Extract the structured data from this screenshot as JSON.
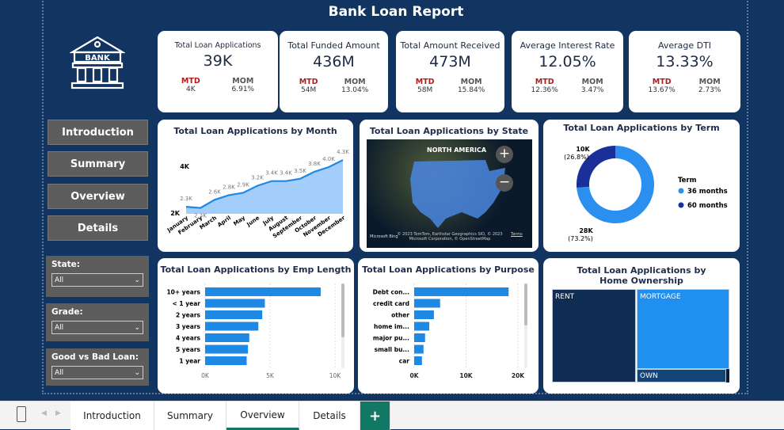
{
  "title": "Bank Loan Report",
  "logo": {
    "text": "BANK"
  },
  "kpis": [
    {
      "title": "Total Loan Applications",
      "value": "39K",
      "mtd_label": "MTD",
      "mtd": "4K",
      "mom_label": "MOM",
      "mom": "6.91%"
    },
    {
      "title": "Total Funded Amount",
      "value": "436M",
      "mtd_label": "MTD",
      "mtd": "54M",
      "mom_label": "MOM",
      "mom": "13.04%"
    },
    {
      "title": "Total Amount Received",
      "value": "473M",
      "mtd_label": "MTD",
      "mtd": "58M",
      "mom_label": "MOM",
      "mom": "15.84%"
    },
    {
      "title": "Average Interest Rate",
      "value": "12.05%",
      "mtd_label": "MTD",
      "mtd": "12.36%",
      "mom_label": "MOM",
      "mom": "3.47%"
    },
    {
      "title": "Average DTI",
      "value": "13.33%",
      "mtd_label": "MTD",
      "mtd": "13.67%",
      "mom_label": "MOM",
      "mom": "2.73%"
    }
  ],
  "nav": [
    "Introduction",
    "Summary",
    "Overview",
    "Details"
  ],
  "filters": [
    {
      "label": "State:",
      "value": "All"
    },
    {
      "label": "Grade:",
      "value": "All"
    },
    {
      "label": "Good vs Bad Loan:",
      "value": "All"
    }
  ],
  "map": {
    "title": "Total Loan Applications by State",
    "region_label": "NORTH AMERICA",
    "attribution": "© 2023 TomTom, Earthstar Geographics SIO, © 2023 Microsoft Corporation, © OpenStreetMap",
    "brand": "Microsoft Bing",
    "terms": "Terms"
  },
  "chart_data": [
    {
      "type": "area",
      "title": "Total Loan Applications by Month",
      "categories": [
        "January",
        "February",
        "March",
        "April",
        "May",
        "June",
        "July",
        "August",
        "September",
        "October",
        "November",
        "December"
      ],
      "values": [
        2.3,
        2.3,
        2.6,
        2.8,
        2.9,
        3.2,
        3.4,
        3.4,
        3.5,
        3.8,
        4.0,
        4.3
      ],
      "labels": [
        "2.3K",
        "2.3K",
        "2.6K",
        "2.8K",
        "2.9K",
        "3.2K",
        "3.4K",
        "3.4K",
        "3.5K",
        "3.8K",
        "4.0K",
        "4.3K"
      ],
      "yticks": [
        "2K",
        "4K"
      ],
      "unit": "K",
      "color": "#1e88e5"
    },
    {
      "type": "pie",
      "title": "Total Loan Applications by Term",
      "legend_title": "Term",
      "slices": [
        {
          "name": "36 months",
          "value": 28,
          "label": "28K",
          "pct": "(73.2%)",
          "color": "#2a8fef"
        },
        {
          "name": "60 months",
          "value": 10,
          "label": "10K",
          "pct": "(26.8%)",
          "color": "#1a2f9a"
        }
      ]
    },
    {
      "type": "bar",
      "title": "Total Loan Applications by Emp Length",
      "categories": [
        "10+ years",
        "< 1 year",
        "2 years",
        "3 years",
        "4 years",
        "5 years",
        "1 year"
      ],
      "values": [
        8.9,
        4.6,
        4.4,
        4.1,
        3.4,
        3.3,
        3.2
      ],
      "xticks": [
        "0K",
        "5K",
        "10K"
      ],
      "xlim": [
        0,
        10
      ],
      "color": "#1e88e5"
    },
    {
      "type": "bar",
      "title": "Total Loan Applications by Purpose",
      "categories": [
        "Debt con...",
        "credit card",
        "other",
        "home im...",
        "major pu...",
        "small bu...",
        "car"
      ],
      "values": [
        18.2,
        5.0,
        3.8,
        2.9,
        2.1,
        1.8,
        1.5
      ],
      "xticks": [
        "0K",
        "10K",
        "20K"
      ],
      "xlim": [
        0,
        20
      ],
      "color": "#1e88e5"
    },
    {
      "type": "treemap",
      "title": "Total Loan Applications by Home Ownership",
      "items": [
        {
          "name": "RENT",
          "color": "#0f2c55"
        },
        {
          "name": "MORTGAGE",
          "color": "#1f8ff0"
        },
        {
          "name": "OWN",
          "color": "#124478"
        }
      ]
    }
  ],
  "tabs": [
    "Introduction",
    "Summary",
    "Overview",
    "Details"
  ],
  "active_tab": "Overview",
  "add_tab": "+"
}
